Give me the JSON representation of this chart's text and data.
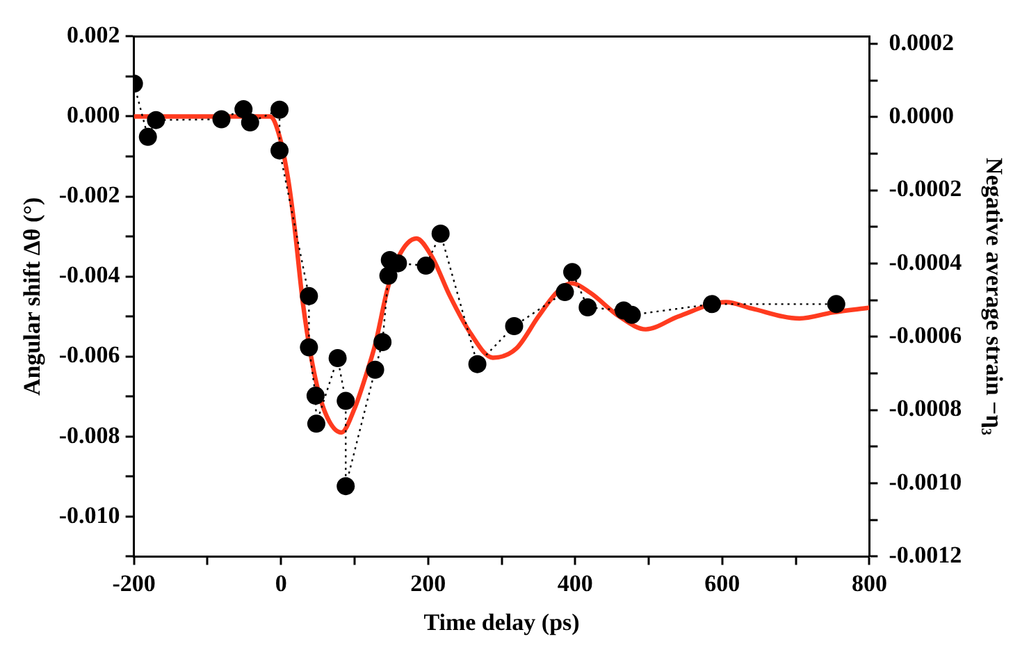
{
  "chart_data": {
    "type": "line",
    "xlabel": "Time delay (ps)",
    "ylabel": "Angular shift Δθ (°)",
    "y2label": "Negative average strain −η₃",
    "xlim": [
      -200,
      800
    ],
    "xticks": [
      -200,
      {
        "value": -100,
        "label": null
      },
      0,
      {
        "value": 100,
        "label": null
      },
      200,
      {
        "value": 300,
        "label": null
      },
      400,
      {
        "value": 500,
        "label": null
      },
      600,
      {
        "value": 700,
        "label": null
      },
      800
    ],
    "ylim": [
      -0.011,
      0.002
    ],
    "yticks": [
      {
        "value": 0.002,
        "label": "0.002"
      },
      {
        "value": 0.001,
        "label": null
      },
      {
        "value": 0,
        "label": "0.000"
      },
      {
        "value": -0.001,
        "label": null
      },
      {
        "value": -0.002,
        "label": "-0.002"
      },
      {
        "value": -0.003,
        "label": null
      },
      {
        "value": -0.004,
        "label": "-0.004"
      },
      {
        "value": -0.005,
        "label": null
      },
      {
        "value": -0.006,
        "label": "-0.006"
      },
      {
        "value": -0.007,
        "label": null
      },
      {
        "value": -0.008,
        "label": "-0.008"
      },
      {
        "value": -0.009,
        "label": null
      },
      {
        "value": -0.01,
        "label": "-0.010"
      },
      {
        "value": -0.011,
        "label": null
      }
    ],
    "y2lim": [
      -0.0012,
      0.00022
    ],
    "y2ticks": [
      {
        "value": 0.0002,
        "label": "0.0002"
      },
      {
        "value": 0.0001,
        "label": null
      },
      {
        "value": 0,
        "label": "0.0000"
      },
      {
        "value": -0.0001,
        "label": null
      },
      {
        "value": -0.0002,
        "label": "-0.0002"
      },
      {
        "value": -0.0003,
        "label": null
      },
      {
        "value": -0.0004,
        "label": "-0.0004"
      },
      {
        "value": -0.0005,
        "label": null
      },
      {
        "value": -0.0006,
        "label": "-0.0006"
      },
      {
        "value": -0.0007,
        "label": null
      },
      {
        "value": -0.0008,
        "label": "-0.0008"
      },
      {
        "value": -0.0009,
        "label": null
      },
      {
        "value": -0.001,
        "label": "-0.0010"
      },
      {
        "value": -0.0011,
        "label": null
      },
      {
        "value": -0.0012,
        "label": "-0.0012"
      }
    ],
    "grid": false,
    "series": [
      {
        "color": "#000000",
        "marker": "circle",
        "line_style": "dotted",
        "x": [
          -200,
          -181,
          -170,
          -81,
          -51,
          -42,
          -2,
          -2,
          38,
          38,
          47,
          48,
          77,
          88,
          88,
          128,
          138,
          146,
          148,
          159,
          197,
          217,
          267,
          317,
          386,
          396,
          417,
          466,
          477,
          586,
          755
        ],
        "values": [
          0.00082,
          -0.00051,
          -9e-05,
          -7e-05,
          0.00018,
          -0.00015,
          0.00017,
          -0.00085,
          -0.00449,
          -0.00577,
          -0.00698,
          -0.00768,
          -0.00604,
          -0.00711,
          -0.00924,
          -0.00633,
          -0.00564,
          -0.00398,
          -0.00359,
          -0.00367,
          -0.00373,
          -0.00293,
          -0.00619,
          -0.00524,
          -0.00439,
          -0.00389,
          -0.00477,
          -0.00485,
          -0.00496,
          -0.00469,
          -0.00469
        ]
      },
      {
        "color": "#ff3b1f",
        "marker": "none",
        "line_style": "solid",
        "x": [
          -200,
          -15,
          -2,
          10,
          18,
          30,
          45,
          60,
          82,
          100,
          115,
          128,
          145,
          160,
          184,
          205,
          230,
          257,
          288,
          320,
          350,
          375,
          395,
          420,
          460,
          496,
          540,
          605,
          640,
          705,
          750,
          800
        ],
        "values": [
          0,
          0,
          -0.0005,
          -0.0016,
          -0.0027,
          -0.0047,
          -0.0064,
          -0.0074,
          -0.0079,
          -0.0073,
          -0.0065,
          -0.0057,
          -0.0043,
          -0.0035,
          -0.00305,
          -0.0035,
          -0.0045,
          -0.0054,
          -0.00603,
          -0.0058,
          -0.005,
          -0.0044,
          -0.00417,
          -0.0044,
          -0.005,
          -0.00532,
          -0.005,
          -0.00464,
          -0.0048,
          -0.00505,
          -0.0049,
          -0.00478
        ]
      }
    ]
  }
}
